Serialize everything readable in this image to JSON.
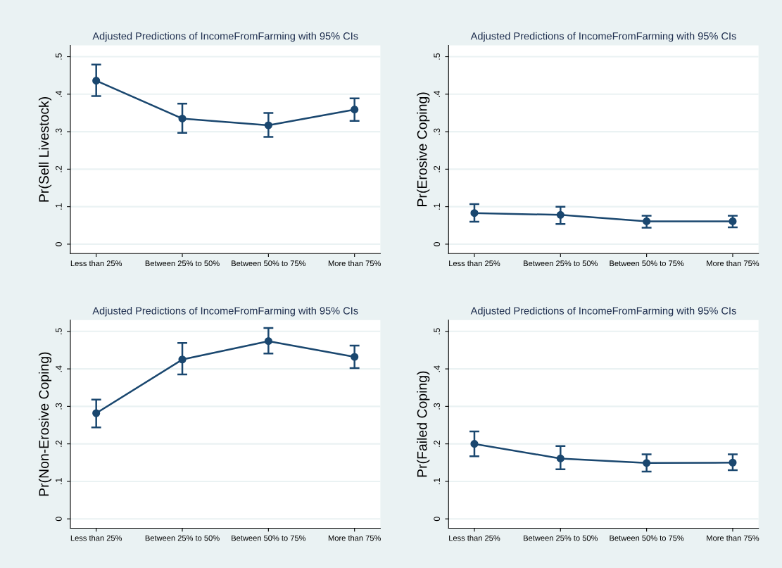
{
  "chart_data": [
    {
      "type": "line",
      "title": "Adjusted Predictions of IncomeFromFarming with 95% CIs",
      "ylabel": "Pr(Sell Livestock)",
      "categories": [
        "Less than 25%",
        "Between 25% to 50%",
        "Between 50% to 75%",
        "More than 75%"
      ],
      "series": [
        {
          "color": "#1a476f",
          "values": [
            0.436,
            0.335,
            0.317,
            0.359
          ],
          "errors": [
            [
              0.395,
              0.479
            ],
            [
              0.297,
              0.375
            ],
            [
              0.286,
              0.35
            ],
            [
              0.329,
              0.389
            ]
          ]
        }
      ],
      "ylim": [
        -0.025,
        0.53
      ],
      "yticks": [
        0,
        {
          "value": 0.1,
          "label": ".1"
        },
        {
          "value": 0.2,
          "label": ".2"
        },
        {
          "value": 0.3,
          "label": ".3"
        },
        {
          "value": 0.4,
          "label": ".4"
        },
        {
          "value": 0.5,
          "label": ".5"
        }
      ],
      "grid": "y",
      "marker": "circle",
      "line_style": "solid",
      "legend": false
    },
    {
      "type": "line",
      "title": "Adjusted Predictions of IncomeFromFarming with 95% CIs",
      "ylabel": "Pr(Erosive Coping)",
      "categories": [
        "Less than 25%",
        "Between 25% to 50%",
        "Between 50% to 75%",
        "More than 75%"
      ],
      "series": [
        {
          "color": "#1a476f",
          "values": [
            0.083,
            0.078,
            0.061,
            0.061
          ],
          "errors": [
            [
              0.06,
              0.107
            ],
            [
              0.054,
              0.1
            ],
            [
              0.044,
              0.076
            ],
            [
              0.045,
              0.076
            ]
          ]
        }
      ],
      "ylim": [
        -0.025,
        0.53
      ],
      "yticks": [
        0,
        {
          "value": 0.1,
          "label": ".1"
        },
        {
          "value": 0.2,
          "label": ".2"
        },
        {
          "value": 0.3,
          "label": ".3"
        },
        {
          "value": 0.4,
          "label": ".4"
        },
        {
          "value": 0.5,
          "label": ".5"
        }
      ],
      "grid": "y",
      "marker": "circle",
      "line_style": "solid",
      "legend": false
    },
    {
      "type": "line",
      "title": "Adjusted Predictions of IncomeFromFarming with 95% CIs",
      "ylabel": "Pr(Non-Erosive Coping)",
      "categories": [
        "Less than 25%",
        "Between 25% to 50%",
        "Between 50% to 75%",
        "More than 75%"
      ],
      "series": [
        {
          "color": "#1a476f",
          "values": [
            0.282,
            0.425,
            0.474,
            0.432
          ],
          "errors": [
            [
              0.244,
              0.318
            ],
            [
              0.385,
              0.469
            ],
            [
              0.441,
              0.509
            ],
            [
              0.402,
              0.462
            ]
          ]
        }
      ],
      "ylim": [
        -0.025,
        0.53
      ],
      "yticks": [
        0,
        {
          "value": 0.1,
          "label": ".1"
        },
        {
          "value": 0.2,
          "label": ".2"
        },
        {
          "value": 0.3,
          "label": ".3"
        },
        {
          "value": 0.4,
          "label": ".4"
        },
        {
          "value": 0.5,
          "label": ".5"
        }
      ],
      "grid": "y",
      "marker": "circle",
      "line_style": "solid",
      "legend": false
    },
    {
      "type": "line",
      "title": "Adjusted Predictions of IncomeFromFarming with 95% CIs",
      "ylabel": "Pr(Failed Coping)",
      "categories": [
        "Less than 25%",
        "Between 25% to 50%",
        "Between 50% to 75%",
        "More than 75%"
      ],
      "series": [
        {
          "color": "#1a476f",
          "values": [
            0.2,
            0.161,
            0.149,
            0.15
          ],
          "errors": [
            [
              0.167,
              0.233
            ],
            [
              0.132,
              0.194
            ],
            [
              0.126,
              0.172
            ],
            [
              0.13,
              0.172
            ]
          ]
        }
      ],
      "ylim": [
        -0.025,
        0.53
      ],
      "yticks": [
        0,
        {
          "value": 0.1,
          "label": ".1"
        },
        {
          "value": 0.2,
          "label": ".2"
        },
        {
          "value": 0.3,
          "label": ".3"
        },
        {
          "value": 0.4,
          "label": ".4"
        },
        {
          "value": 0.5,
          "label": ".5"
        }
      ],
      "grid": "y",
      "marker": "circle",
      "line_style": "solid",
      "legend": false
    }
  ]
}
